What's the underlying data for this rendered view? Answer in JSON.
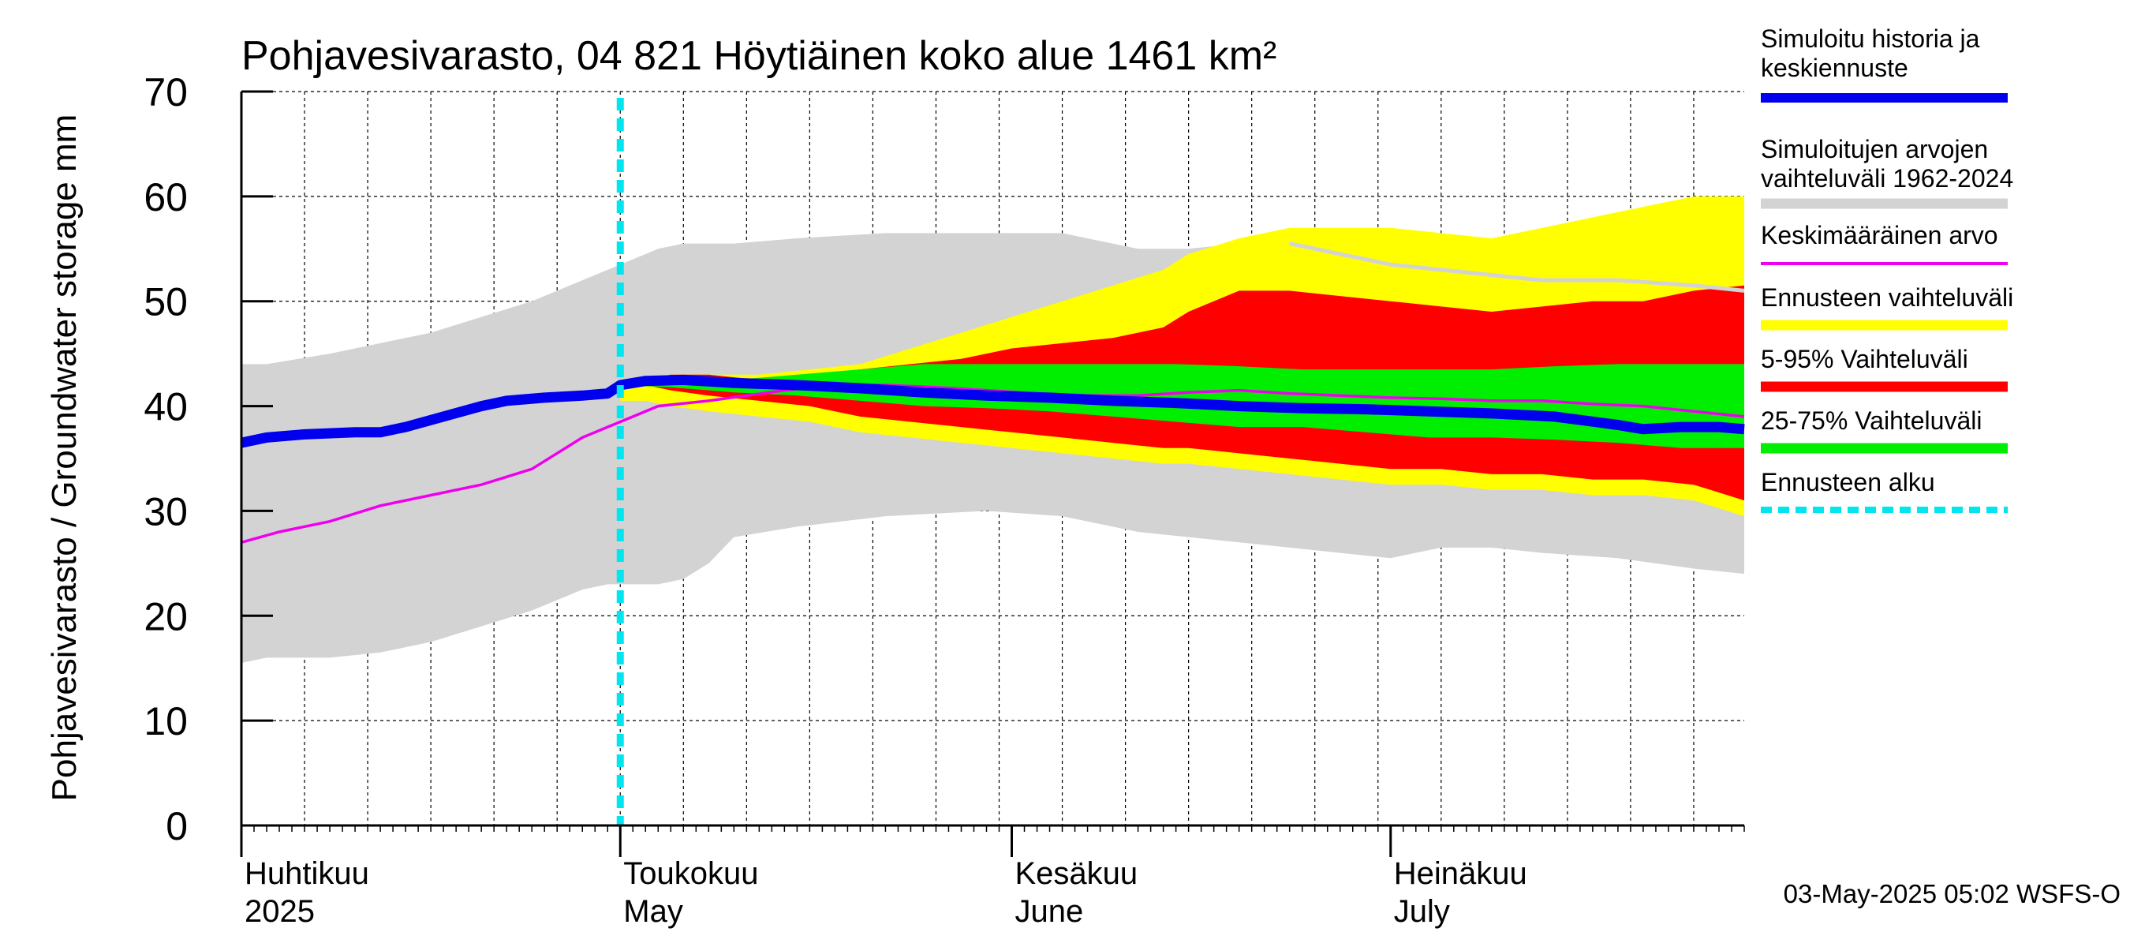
{
  "chart_data": {
    "type": "area",
    "title": "Pohjavesivarasto, 04 821 Höytiäinen koko alue 1461 km²",
    "ylabel": "Pohjavesivarasto / Groundwater storage   mm",
    "ylim": [
      0,
      70
    ],
    "yticks": [
      "0",
      "10",
      "20",
      "30",
      "40",
      "50",
      "60",
      "70"
    ],
    "xlim": [
      1,
      120
    ],
    "forecast_start_day": 31,
    "month_labels": [
      {
        "day": 1,
        "fi": "Huhtikuu",
        "en": "2025"
      },
      {
        "day": 31,
        "fi": "Toukokuu",
        "en": "May"
      },
      {
        "day": 62,
        "fi": "Kesäkuu",
        "en": "June"
      },
      {
        "day": 92,
        "fi": "Heinäkuu",
        "en": "July"
      }
    ],
    "footer": "03-May-2025 05:02 WSFS-O",
    "legend": [
      {
        "label": "Simuloitu historia ja keskiennuste",
        "color": "#0000ee",
        "style": "thick"
      },
      {
        "label": "Simuloitujen arvojen vaihteluväli 1962-2024",
        "color": "#d3d3d3",
        "style": "band"
      },
      {
        "label": "Keskimääräinen arvo",
        "color": "#ee00ee",
        "style": "line"
      },
      {
        "label": "Ennusteen vaihteluväli",
        "color": "#ffff00",
        "style": "band"
      },
      {
        "label": "5-95% Vaihteluväli",
        "color": "#ff0000",
        "style": "band"
      },
      {
        "label": "25-75% Vaihteluväli",
        "color": "#00ee00",
        "style": "band"
      },
      {
        "label": "Ennusteen alku",
        "color": "#00e5ee",
        "style": "dashed"
      }
    ],
    "series": {
      "hist_range": {
        "x": [
          1,
          3,
          8,
          12,
          16,
          20,
          24,
          28,
          30,
          31,
          34,
          36,
          38,
          40,
          45,
          52,
          60,
          66,
          72,
          76,
          80,
          84,
          88,
          92,
          96,
          100,
          104,
          110,
          116,
          120
        ],
        "upper": [
          44,
          44,
          45,
          46,
          47,
          48.5,
          50,
          52,
          53,
          53.5,
          55,
          55.5,
          55.5,
          55.5,
          56,
          56.5,
          56.5,
          56.5,
          55,
          55,
          55.5,
          55.5,
          54.5,
          53.5,
          53,
          52.5,
          52,
          52,
          51.5,
          51
        ],
        "lower": [
          15.5,
          16,
          16,
          16.5,
          17.5,
          19,
          20.5,
          22.5,
          23,
          23,
          23,
          23.5,
          25,
          27.5,
          28.5,
          29.5,
          30,
          29.5,
          28,
          27.5,
          27,
          26.5,
          26,
          25.5,
          26.5,
          26.5,
          26,
          25.5,
          24.5,
          24
        ]
      },
      "fc_range": {
        "x": [
          31,
          33,
          35,
          38,
          42,
          46,
          50,
          54,
          58,
          62,
          66,
          70,
          74,
          76,
          80,
          84,
          88,
          92,
          96,
          100,
          104,
          108,
          112,
          116,
          120
        ],
        "upper": [
          42,
          42.5,
          43,
          43,
          43,
          43.5,
          44,
          45.5,
          47,
          48.5,
          50,
          51.5,
          53,
          54.5,
          56,
          57,
          57,
          57,
          56.5,
          56,
          57,
          58,
          59,
          60,
          60
        ]
      },
      "p5_95": {
        "x": [
          31,
          33,
          35,
          38,
          42,
          46,
          50,
          54,
          58,
          62,
          66,
          70,
          74,
          76,
          80,
          84,
          88,
          92,
          96,
          100,
          104,
          108,
          112,
          116,
          120
        ],
        "upper": [
          42,
          42.5,
          43,
          43,
          42.5,
          43,
          43.5,
          44,
          44.5,
          45.5,
          46,
          46.5,
          47.5,
          49,
          51,
          51,
          50.5,
          50,
          49.5,
          49,
          49.5,
          50,
          50,
          51,
          51.5
        ],
        "lower": [
          42,
          42,
          41.5,
          41,
          40.5,
          40,
          39,
          38.5,
          38,
          37.5,
          37,
          36.5,
          36,
          36,
          35.5,
          35,
          34.5,
          34,
          34,
          33.5,
          33.5,
          33,
          33,
          32.5,
          31
        ]
      },
      "p25_75": {
        "x": [
          31,
          35,
          40,
          45,
          50,
          55,
          60,
          65,
          70,
          75,
          80,
          85,
          90,
          95,
          100,
          105,
          110,
          115,
          120
        ],
        "upper": [
          42,
          42.3,
          42.5,
          43,
          43.5,
          44,
          44,
          44,
          44,
          44,
          43.8,
          43.5,
          43.5,
          43.5,
          43.5,
          43.8,
          44,
          44,
          44
        ],
        "lower": [
          42,
          41.8,
          41.3,
          41,
          40.5,
          40,
          39.8,
          39.5,
          39,
          38.5,
          38,
          38,
          37.5,
          37,
          37,
          36.8,
          36.5,
          36,
          36
        ]
      },
      "mean": {
        "x": [
          1,
          4,
          8,
          12,
          16,
          20,
          24,
          28,
          30,
          31,
          34,
          38,
          41,
          44,
          48,
          52,
          56,
          60,
          64,
          68,
          72,
          76,
          80,
          84,
          88,
          92,
          96,
          100,
          104,
          108,
          112,
          116,
          120
        ],
        "y": [
          27,
          28,
          29,
          30.5,
          31.5,
          32.5,
          34,
          37,
          38,
          38.5,
          40,
          40.5,
          41,
          41.5,
          42,
          42,
          41.8,
          41.5,
          41.2,
          41,
          41,
          41.3,
          41.5,
          41.2,
          41,
          40.8,
          40.7,
          40.5,
          40.5,
          40.2,
          40,
          39.5,
          39
        ]
      },
      "sim": {
        "x": [
          1,
          3,
          6,
          10,
          12,
          14,
          17,
          20,
          22,
          25,
          28,
          30,
          31,
          33,
          36,
          40,
          45,
          50,
          55,
          60,
          65,
          70,
          75,
          80,
          85,
          90,
          95,
          100,
          105,
          110,
          112,
          115,
          118,
          120
        ],
        "y": [
          36.5,
          37,
          37.3,
          37.5,
          37.5,
          38,
          39,
          40,
          40.5,
          40.8,
          41,
          41.2,
          42,
          42.4,
          42.5,
          42.2,
          42,
          41.7,
          41.3,
          41,
          40.8,
          40.5,
          40.3,
          40,
          39.8,
          39.7,
          39.5,
          39.3,
          39,
          38.2,
          37.8,
          38,
          38,
          37.8
        ]
      }
    }
  }
}
